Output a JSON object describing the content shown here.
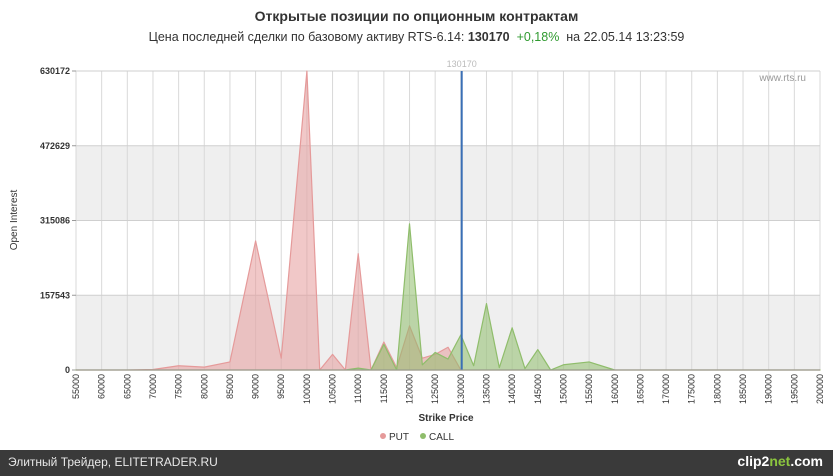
{
  "header": {
    "title": "Открытые позиции по опционным контрактам",
    "subtitle_prefix": "Цена последней сделки по базовому активу RTS-6.14:",
    "last_price": "130170",
    "change": "+0,18%",
    "subtitle_suffix": "на 22.05.14 13:23:59"
  },
  "chart_data": {
    "type": "area",
    "xlabel": "Strike Price",
    "ylabel": "Open Interest",
    "ylim": [
      0,
      630172
    ],
    "yticks": [
      0,
      157543,
      315086,
      472629,
      630172
    ],
    "x": [
      55000,
      60000,
      65000,
      70000,
      75000,
      80000,
      85000,
      90000,
      95000,
      100000,
      102500,
      105000,
      107500,
      110000,
      112500,
      115000,
      117500,
      120000,
      122500,
      125000,
      127500,
      130000,
      132500,
      135000,
      137500,
      140000,
      142500,
      145000,
      147500,
      150000,
      155000,
      160000,
      165000,
      170000,
      175000,
      180000,
      185000,
      190000,
      195000,
      200000
    ],
    "series": [
      {
        "name": "PUT",
        "color": "#e59a9a",
        "values": [
          0,
          0,
          0,
          1000,
          9000,
          6000,
          17000,
          272000,
          25000,
          630000,
          0,
          33000,
          0,
          245000,
          0,
          59000,
          5000,
          93000,
          25000,
          33000,
          48000,
          0,
          0,
          0,
          0,
          0,
          0,
          0,
          0,
          0,
          0,
          0,
          0,
          0,
          0,
          0,
          0,
          0,
          0,
          0
        ]
      },
      {
        "name": "CALL",
        "color": "#8fbd6b",
        "values": [
          0,
          0,
          0,
          0,
          0,
          0,
          0,
          0,
          0,
          0,
          0,
          0,
          0,
          4000,
          0,
          54000,
          0,
          308000,
          11000,
          37000,
          23000,
          74000,
          9000,
          140000,
          5000,
          89000,
          3000,
          43000,
          0,
          11000,
          17000,
          0,
          0,
          0,
          0,
          0,
          0,
          0,
          0,
          0
        ]
      }
    ],
    "current_price": 130170,
    "current_price_label": "130170",
    "watermark": "www.rts.ru",
    "legend_placement": "bottom-center"
  },
  "footer": {
    "text": "Элитный Трейдер, ELITETRADER.RU",
    "brand_main": "clip2",
    "brand_dot": "net",
    "brand_tail": ".com"
  }
}
